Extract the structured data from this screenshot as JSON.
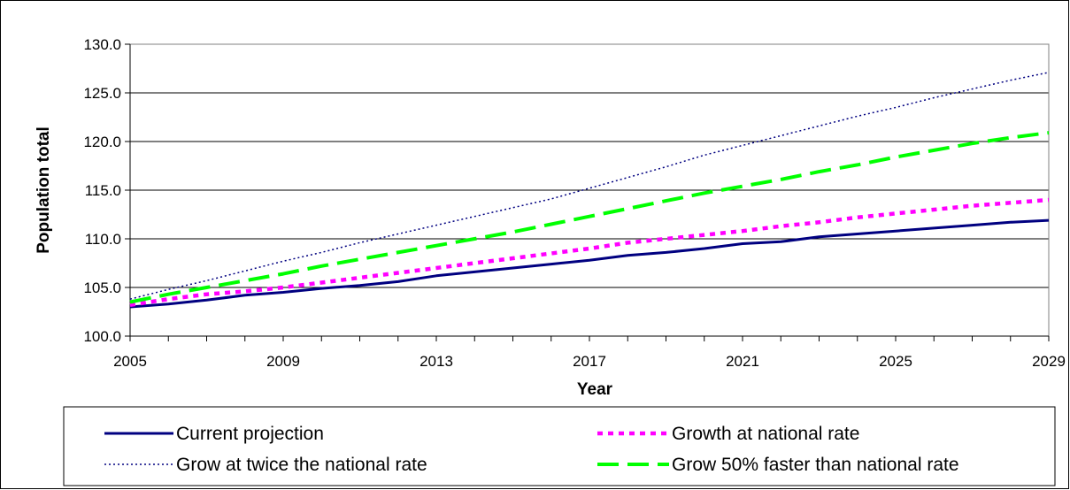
{
  "chart_data": {
    "type": "line",
    "title": "",
    "xlabel": "Year",
    "ylabel": "Population total",
    "x": [
      2005,
      2006,
      2007,
      2008,
      2009,
      2010,
      2011,
      2012,
      2013,
      2014,
      2015,
      2016,
      2017,
      2018,
      2019,
      2020,
      2021,
      2022,
      2023,
      2024,
      2025,
      2026,
      2027,
      2028,
      2029
    ],
    "x_ticks": [
      "2005",
      "2009",
      "2013",
      "2017",
      "2021",
      "2025",
      "2029"
    ],
    "y_ticks": [
      "100.0",
      "105.0",
      "110.0",
      "115.0",
      "120.0",
      "125.0",
      "130.0"
    ],
    "ylim": [
      100,
      130
    ],
    "xlim": [
      2005,
      2029
    ],
    "grid": "horizontal",
    "legend": "bottom",
    "series": [
      {
        "name": "Current projection",
        "color": "#000080",
        "style": "solid",
        "values": [
          103.0,
          103.3,
          103.7,
          104.2,
          104.5,
          104.9,
          105.2,
          105.6,
          106.2,
          106.6,
          107.0,
          107.4,
          107.8,
          108.3,
          108.6,
          109.0,
          109.5,
          109.7,
          110.2,
          110.5,
          110.8,
          111.1,
          111.4,
          111.7,
          111.9
        ]
      },
      {
        "name": "Growth at national rate",
        "color": "#ff00ff",
        "style": "dotted",
        "values": [
          103.2,
          103.8,
          104.3,
          104.6,
          105.0,
          105.5,
          106.0,
          106.5,
          107.0,
          107.5,
          108.0,
          108.5,
          109.0,
          109.6,
          110.0,
          110.4,
          110.8,
          111.3,
          111.7,
          112.2,
          112.6,
          113.0,
          113.4,
          113.7,
          114.0
        ]
      },
      {
        "name": "Grow at twice the national rate",
        "color": "#000080",
        "style": "dense-dot",
        "values": [
          103.8,
          104.8,
          105.7,
          106.7,
          107.7,
          108.6,
          109.6,
          110.5,
          111.4,
          112.3,
          113.2,
          114.1,
          115.2,
          116.3,
          117.4,
          118.6,
          119.6,
          120.6,
          121.6,
          122.6,
          123.5,
          124.5,
          125.4,
          126.3,
          127.1
        ]
      },
      {
        "name": "Grow 50% faster than national rate",
        "color": "#00ff00",
        "style": "dashed",
        "values": [
          103.5,
          104.3,
          105.0,
          105.7,
          106.4,
          107.2,
          107.9,
          108.6,
          109.3,
          110.0,
          110.7,
          111.5,
          112.3,
          113.1,
          113.9,
          114.7,
          115.4,
          116.1,
          116.9,
          117.6,
          118.4,
          119.1,
          119.8,
          120.4,
          120.9
        ]
      }
    ]
  }
}
